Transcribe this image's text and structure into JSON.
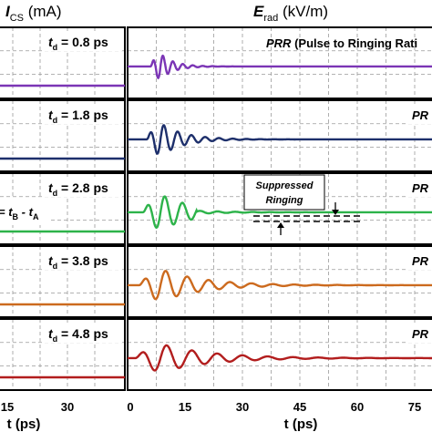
{
  "figure": {
    "left_title_symbol": "I",
    "left_title_sub": "CS",
    "left_title_unit": " (mA)",
    "right_title_symbol": "E",
    "right_title_sub": "rad",
    "right_title_unit": " (kV/m)",
    "annotation_prr": "PRR (Pulse to Ringing Rati",
    "annotation_prr_bold": "PRR",
    "annotation_prr_rest": " (Pulse to Ringing Rati",
    "annotation_prr_short": "PR",
    "annotation_suppressed_line1": "Suppressed",
    "annotation_suppressed_line2": "Ringing",
    "annotation_td_formula": "= t",
    "annotation_td_formula_B": "B",
    "annotation_td_formula_mid": " - t",
    "annotation_td_formula_A": "A"
  },
  "chart_data": [
    {
      "type": "line",
      "name": "left",
      "title": "ICS (mA)",
      "xlabel": "t (ps)",
      "x_ticks": [
        "15",
        "30"
      ],
      "panels": [
        {
          "label": "t",
          "sub": "d",
          "value": " = 0.8 ps",
          "color": "#7b35b5"
        },
        {
          "label": "t",
          "sub": "d",
          "value": " = 1.8 ps",
          "color": "#1d2f6b"
        },
        {
          "label": "t",
          "sub": "d",
          "value": " = 2.8 ps",
          "color": "#2db34a"
        },
        {
          "label": "t",
          "sub": "d",
          "value": " = 3.8 ps",
          "color": "#cc6a1e"
        },
        {
          "label": "t",
          "sub": "d",
          "value": " = 4.8 ps",
          "color": "#b21d1d"
        }
      ]
    },
    {
      "type": "line",
      "name": "right",
      "title": "Erad (kV/m)",
      "xlabel": "t (ps)",
      "x_ticks": [
        "0",
        "15",
        "30",
        "45",
        "60",
        "75"
      ],
      "xlim": [
        0,
        80
      ],
      "series": [
        {
          "color": "#7b35b5",
          "onset": 6,
          "amplitude": 0.9,
          "period": 2.6,
          "decay": 3.5
        },
        {
          "color": "#1d2f6b",
          "onset": 5,
          "amplitude": 1.0,
          "period": 3.6,
          "decay": 6
        },
        {
          "color": "#2db34a",
          "onset": 4,
          "amplitude": 1.0,
          "period": 4.6,
          "decay": 9
        },
        {
          "color": "#cc6a1e",
          "onset": 3,
          "amplitude": 0.9,
          "period": 5.6,
          "decay": 11
        },
        {
          "color": "#b21d1d",
          "onset": 2,
          "amplitude": 0.8,
          "period": 6.6,
          "decay": 13
        }
      ]
    }
  ]
}
